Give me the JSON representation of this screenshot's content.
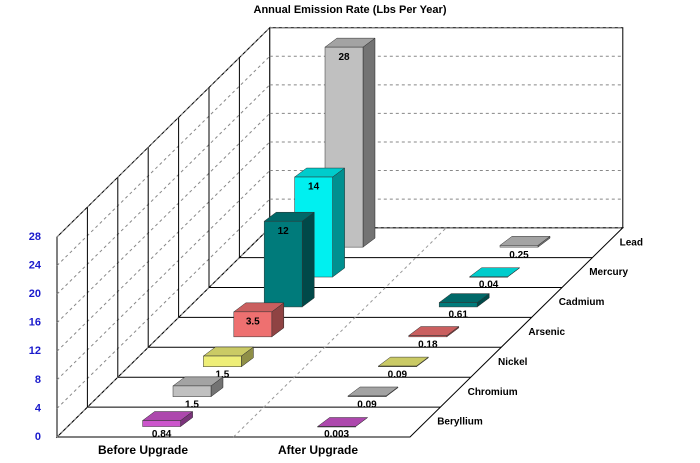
{
  "chart_data": {
    "type": "bar3d",
    "title": "Annual Emission Rate (Lbs Per Year)",
    "categories": [
      "Before Upgrade",
      "After Upgrade"
    ],
    "series": [
      {
        "name": "Beryllium",
        "color": "#cc55cc",
        "values": [
          0.84,
          0.003
        ]
      },
      {
        "name": "Chromium",
        "color": "#c0c0c0",
        "values": [
          1.5,
          0.09
        ]
      },
      {
        "name": "Nickel",
        "color": "#eeee77",
        "values": [
          1.5,
          0.09
        ]
      },
      {
        "name": "Arsenic",
        "color": "#ee7070",
        "values": [
          3.5,
          0.18
        ]
      },
      {
        "name": "Cadmium",
        "color": "#007b7b",
        "values": [
          12,
          0.61
        ]
      },
      {
        "name": "Mercury",
        "color": "#00f0f0",
        "values": [
          14,
          0.04
        ]
      },
      {
        "name": "Lead",
        "color": "#c0c0c0",
        "values": [
          28,
          0.25
        ]
      }
    ],
    "ylim": [
      0,
      28
    ],
    "yticks": [
      0,
      4,
      8,
      12,
      16,
      20,
      24,
      28
    ],
    "grid": true
  }
}
